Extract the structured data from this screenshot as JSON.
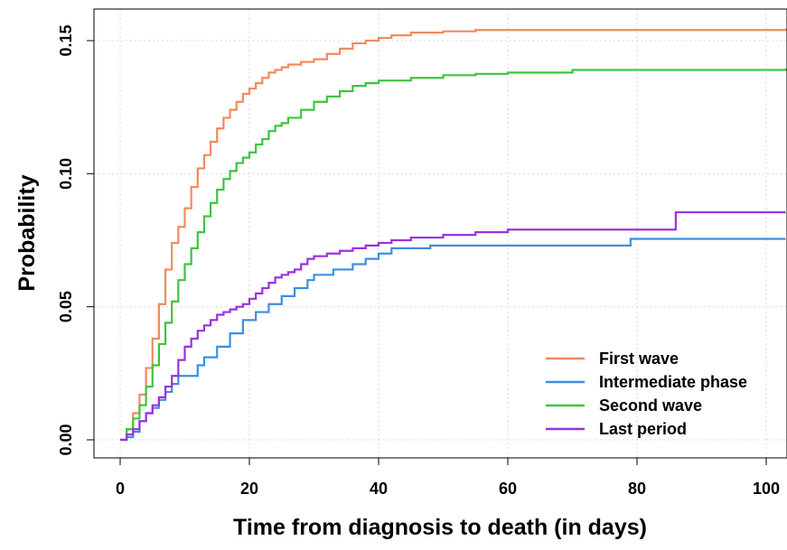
{
  "chart_data": {
    "type": "line",
    "step": true,
    "title": "",
    "xlabel": "Time from diagnosis to death (in days)",
    "ylabel": "Probability",
    "xlim": [
      0,
      103
    ],
    "ylim": [
      0,
      0.158
    ],
    "xticks": [
      0,
      20,
      40,
      60,
      80,
      100
    ],
    "xtick_labels": [
      "0",
      "20",
      "40",
      "60",
      "80",
      "100"
    ],
    "yticks": [
      0.0,
      0.05,
      0.1,
      0.15
    ],
    "ytick_labels": [
      "0.00",
      "0.05",
      "0.10",
      "0.15"
    ],
    "grid": true,
    "legend_position": "bottom-right",
    "series": [
      {
        "name": "First wave",
        "color": "#f08a5d",
        "x": [
          0,
          1,
          2,
          3,
          4,
          5,
          6,
          7,
          8,
          9,
          10,
          11,
          12,
          13,
          14,
          15,
          16,
          17,
          18,
          19,
          20,
          21,
          22,
          23,
          24,
          25,
          26,
          28,
          30,
          32,
          34,
          36,
          38,
          40,
          42,
          45,
          50,
          55,
          60,
          80,
          103
        ],
        "y": [
          0,
          0.004,
          0.01,
          0.017,
          0.027,
          0.038,
          0.051,
          0.064,
          0.074,
          0.08,
          0.087,
          0.095,
          0.102,
          0.107,
          0.112,
          0.117,
          0.121,
          0.124,
          0.127,
          0.13,
          0.132,
          0.134,
          0.136,
          0.138,
          0.139,
          0.14,
          0.141,
          0.142,
          0.143,
          0.145,
          0.147,
          0.149,
          0.15,
          0.151,
          0.152,
          0.153,
          0.1535,
          0.154,
          0.154,
          0.154,
          0.1545
        ]
      },
      {
        "name": "Intermediate phase",
        "color": "#3b8fe0",
        "x": [
          0,
          1,
          2,
          3,
          4,
          5,
          6,
          7,
          8,
          9,
          12,
          13,
          15,
          17,
          19,
          21,
          23,
          25,
          27,
          29,
          30,
          33,
          36,
          38,
          40,
          42,
          48,
          60,
          79,
          103
        ],
        "y": [
          0,
          0.001,
          0.003,
          0.007,
          0.01,
          0.012,
          0.015,
          0.018,
          0.021,
          0.024,
          0.028,
          0.031,
          0.035,
          0.04,
          0.045,
          0.048,
          0.051,
          0.054,
          0.057,
          0.06,
          0.062,
          0.064,
          0.066,
          0.068,
          0.07,
          0.072,
          0.073,
          0.073,
          0.0755,
          0.0755
        ]
      },
      {
        "name": "Second wave",
        "color": "#3dc43d",
        "x": [
          0,
          1,
          2,
          3,
          4,
          5,
          6,
          7,
          8,
          9,
          10,
          11,
          12,
          13,
          14,
          15,
          16,
          17,
          18,
          19,
          20,
          21,
          22,
          23,
          24,
          25,
          26,
          28,
          30,
          32,
          34,
          36,
          38,
          40,
          45,
          50,
          55,
          60,
          70,
          103
        ],
        "y": [
          0,
          0.004,
          0.008,
          0.013,
          0.02,
          0.028,
          0.036,
          0.044,
          0.052,
          0.06,
          0.066,
          0.072,
          0.078,
          0.084,
          0.089,
          0.094,
          0.098,
          0.101,
          0.104,
          0.106,
          0.108,
          0.111,
          0.113,
          0.116,
          0.118,
          0.119,
          0.121,
          0.124,
          0.127,
          0.129,
          0.131,
          0.133,
          0.134,
          0.135,
          0.136,
          0.137,
          0.1375,
          0.138,
          0.139,
          0.1395
        ]
      },
      {
        "name": "Last period",
        "color": "#9b30e0",
        "x": [
          0,
          1,
          2,
          3,
          4,
          5,
          6,
          7,
          8,
          9,
          10,
          11,
          12,
          13,
          14,
          15,
          16,
          17,
          18,
          19,
          20,
          21,
          22,
          23,
          24,
          25,
          26,
          27,
          28,
          29,
          30,
          32,
          34,
          36,
          38,
          40,
          42,
          45,
          50,
          55,
          60,
          86,
          103
        ],
        "y": [
          0,
          0.002,
          0.004,
          0.007,
          0.01,
          0.013,
          0.016,
          0.02,
          0.024,
          0.03,
          0.035,
          0.038,
          0.041,
          0.043,
          0.045,
          0.047,
          0.048,
          0.049,
          0.05,
          0.051,
          0.053,
          0.055,
          0.057,
          0.059,
          0.061,
          0.062,
          0.063,
          0.064,
          0.066,
          0.068,
          0.069,
          0.07,
          0.071,
          0.072,
          0.073,
          0.074,
          0.075,
          0.076,
          0.077,
          0.078,
          0.079,
          0.0855,
          0.0855
        ]
      }
    ]
  }
}
